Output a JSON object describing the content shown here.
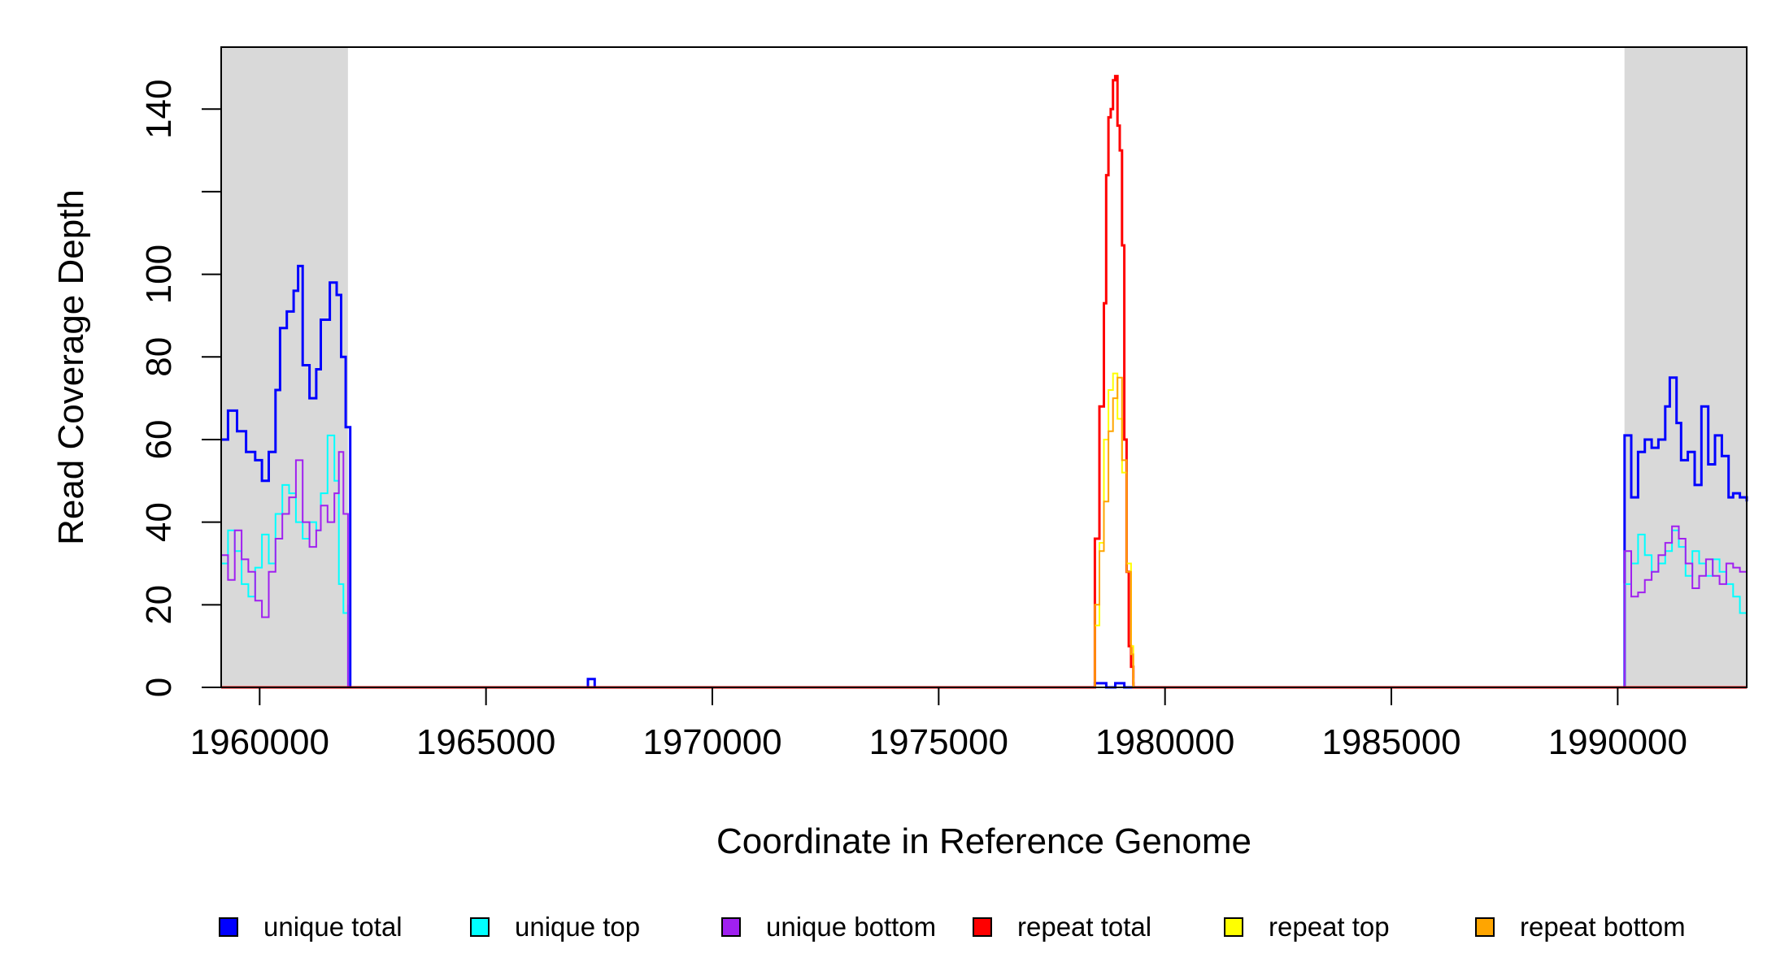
{
  "chart_data": {
    "type": "line",
    "xlabel": "Coordinate in Reference Genome",
    "ylabel": "Read Coverage Depth",
    "xlim": [
      1959150,
      1992850
    ],
    "ylim": [
      0,
      155
    ],
    "x_ticks": [
      1960000,
      1965000,
      1970000,
      1975000,
      1980000,
      1985000,
      1990000
    ],
    "y_ticks": [
      0,
      20,
      40,
      60,
      80,
      100,
      120,
      140
    ],
    "y_tick_labels": [
      "0",
      "20",
      "40",
      "60",
      "80",
      "100",
      "",
      "140"
    ],
    "shaded_regions": [
      {
        "x0": 1959150,
        "x1": 1961950,
        "color": "#d9d9d9"
      },
      {
        "x0": 1990150,
        "x1": 1992850,
        "color": "#d9d9d9"
      }
    ],
    "legend": {
      "placement": "bottom",
      "entries": [
        {
          "label": "unique total",
          "color": "#0000ff"
        },
        {
          "label": "unique top",
          "color": "#00ffff"
        },
        {
          "label": "unique bottom",
          "color": "#a020f0"
        },
        {
          "label": "repeat total",
          "color": "#ff0000"
        },
        {
          "label": "repeat top",
          "color": "#ffff00"
        },
        {
          "label": "repeat bottom",
          "color": "#ffa500"
        }
      ]
    },
    "series": [
      {
        "name": "unique total",
        "color": "#0000ff",
        "width": 3,
        "x": [
          1959150,
          1959300,
          1959500,
          1959700,
          1959900,
          1960050,
          1960200,
          1960350,
          1960450,
          1960600,
          1960750,
          1960850,
          1960950,
          1961100,
          1961250,
          1961350,
          1961550,
          1961700,
          1961800,
          1961900,
          1962000,
          1962001,
          1967250,
          1967251,
          1967400,
          1967401,
          1978450,
          1978451,
          1978700,
          1978701,
          1978900,
          1978901,
          1979100,
          1979101,
          1979300,
          1979301,
          1990150,
          1990151,
          1990300,
          1990450,
          1990600,
          1990750,
          1990900,
          1991050,
          1991150,
          1991300,
          1991400,
          1991550,
          1991700,
          1991850,
          1992000,
          1992150,
          1992300,
          1992450,
          1992550,
          1992700,
          1992850
        ],
        "y": [
          60,
          67,
          62,
          57,
          55,
          50,
          57,
          72,
          87,
          91,
          96,
          102,
          78,
          70,
          77,
          89,
          98,
          95,
          80,
          63,
          62,
          0,
          0,
          2,
          2,
          0,
          0,
          1,
          1,
          0,
          0,
          1,
          1,
          0,
          0,
          0,
          0,
          61,
          46,
          57,
          60,
          58,
          60,
          68,
          75,
          64,
          55,
          57,
          49,
          68,
          54,
          61,
          56,
          46,
          47,
          46,
          45
        ]
      },
      {
        "name": "unique top",
        "color": "#00ffff",
        "width": 2,
        "x": [
          1959150,
          1959300,
          1959450,
          1959600,
          1959750,
          1959900,
          1960050,
          1960200,
          1960350,
          1960500,
          1960650,
          1960800,
          1960950,
          1961100,
          1961250,
          1961350,
          1961500,
          1961650,
          1961750,
          1961850,
          1961950,
          1961951,
          1990150,
          1990151,
          1990300,
          1990450,
          1990600,
          1990750,
          1990900,
          1991050,
          1991200,
          1991350,
          1991500,
          1991650,
          1991800,
          1991950,
          1992100,
          1992250,
          1992400,
          1992550,
          1992700,
          1992850
        ],
        "y": [
          30,
          38,
          33,
          25,
          22,
          29,
          37,
          30,
          42,
          49,
          47,
          40,
          36,
          40,
          38,
          47,
          61,
          50,
          25,
          18,
          20,
          0,
          0,
          25,
          30,
          37,
          32,
          28,
          30,
          33,
          38,
          34,
          27,
          33,
          30,
          27,
          31,
          28,
          25,
          22,
          18,
          20
        ]
      },
      {
        "name": "unique bottom",
        "color": "#a020f0",
        "width": 2,
        "x": [
          1959150,
          1959300,
          1959450,
          1959600,
          1959750,
          1959900,
          1960050,
          1960200,
          1960350,
          1960500,
          1960650,
          1960800,
          1960950,
          1961100,
          1961250,
          1961350,
          1961500,
          1961650,
          1961750,
          1961850,
          1961950,
          1961951,
          1990150,
          1990151,
          1990300,
          1990450,
          1990600,
          1990750,
          1990900,
          1991050,
          1991200,
          1991350,
          1991500,
          1991650,
          1991800,
          1991950,
          1992100,
          1992250,
          1992400,
          1992550,
          1992700,
          1992850
        ],
        "y": [
          32,
          26,
          38,
          31,
          28,
          21,
          17,
          28,
          36,
          42,
          46,
          55,
          40,
          34,
          38,
          44,
          40,
          47,
          57,
          42,
          40,
          0,
          0,
          33,
          22,
          23,
          26,
          28,
          32,
          35,
          39,
          36,
          30,
          24,
          27,
          31,
          27,
          25,
          30,
          29,
          28,
          24
        ]
      },
      {
        "name": "repeat total",
        "color": "#ff0000",
        "width": 3,
        "x": [
          1959150,
          1978450,
          1978451,
          1978550,
          1978650,
          1978700,
          1978750,
          1978800,
          1978850,
          1978900,
          1978950,
          1979000,
          1979050,
          1979100,
          1979150,
          1979200,
          1979250,
          1979300,
          1979301,
          1992850
        ],
        "y": [
          0,
          0,
          36,
          68,
          93,
          124,
          138,
          140,
          147,
          148,
          136,
          130,
          107,
          60,
          28,
          10,
          5,
          1,
          0,
          0
        ]
      },
      {
        "name": "repeat top",
        "color": "#ffff00",
        "width": 2,
        "x": [
          1959150,
          1978450,
          1978451,
          1978550,
          1978650,
          1978750,
          1978850,
          1978950,
          1979050,
          1979150,
          1979250,
          1979300,
          1979301,
          1992850
        ],
        "y": [
          0,
          0,
          15,
          35,
          60,
          72,
          76,
          65,
          52,
          30,
          10,
          2,
          0,
          0
        ]
      },
      {
        "name": "repeat bottom",
        "color": "#ffa500",
        "width": 2,
        "x": [
          1959150,
          1978450,
          1978451,
          1978550,
          1978650,
          1978750,
          1978850,
          1978950,
          1979050,
          1979150,
          1979250,
          1979300,
          1979301,
          1992850
        ],
        "y": [
          0,
          0,
          20,
          33,
          45,
          62,
          70,
          75,
          55,
          28,
          8,
          1,
          0,
          0
        ]
      }
    ]
  }
}
